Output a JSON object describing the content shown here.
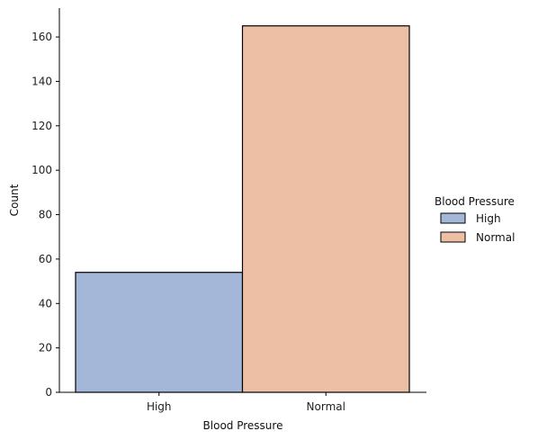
{
  "chart_data": {
    "type": "bar",
    "categories": [
      "High",
      "Normal"
    ],
    "values": [
      54,
      165
    ],
    "colors": [
      "#a5b7d9",
      "#edc0a6"
    ],
    "xlabel": "Blood Pressure",
    "ylabel": "Count",
    "ylim": [
      0,
      173
    ],
    "yticks": [
      0,
      20,
      40,
      60,
      80,
      100,
      120,
      140,
      160
    ],
    "grid": false,
    "legend": {
      "title": "Blood Pressure",
      "placement": "right",
      "entries": [
        "High",
        "Normal"
      ]
    }
  }
}
